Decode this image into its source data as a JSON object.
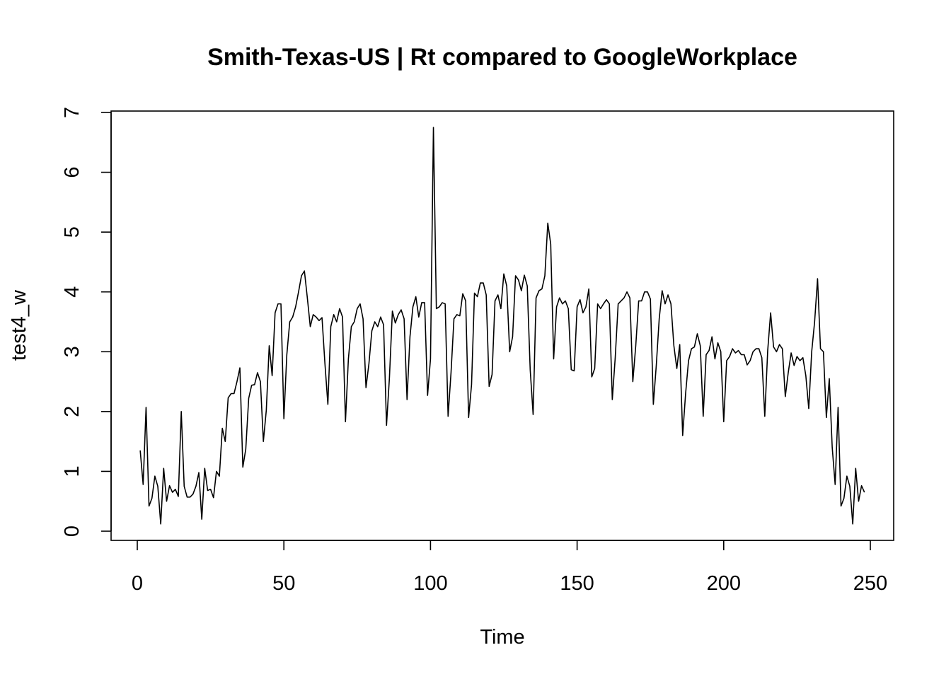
{
  "chart_data": {
    "type": "line",
    "title": "Smith-Texas-US | Rt compared to GoogleWorkplace",
    "xlabel": "Time",
    "ylabel": "test4_w",
    "xlim": [
      1,
      248
    ],
    "ylim": [
      0,
      7
    ],
    "xticks": [
      0,
      50,
      100,
      150,
      200,
      250
    ],
    "yticks": [
      0,
      1,
      2,
      3,
      4,
      5,
      6,
      7
    ],
    "grid": false,
    "series": [
      {
        "values": [
          1.35,
          0.78,
          2.07,
          0.42,
          0.55,
          0.92,
          0.75,
          0.12,
          1.05,
          0.5,
          0.76,
          0.65,
          0.7,
          0.58,
          2.0,
          0.75,
          0.57,
          0.57,
          0.62,
          0.75,
          0.98,
          0.2,
          1.05,
          0.68,
          0.7,
          0.56,
          1.0,
          0.92,
          1.72,
          1.5,
          2.23,
          2.3,
          2.3,
          2.5,
          2.73,
          1.07,
          1.37,
          2.22,
          2.44,
          2.45,
          2.65,
          2.5,
          1.5,
          2.02,
          3.1,
          2.6,
          3.65,
          3.8,
          3.8,
          1.88,
          2.95,
          3.5,
          3.58,
          3.75,
          4.0,
          4.27,
          4.35,
          3.9,
          3.42,
          3.62,
          3.58,
          3.52,
          3.57,
          2.8,
          2.12,
          3.42,
          3.62,
          3.5,
          3.72,
          3.58,
          1.83,
          2.88,
          3.42,
          3.5,
          3.72,
          3.8,
          3.55,
          2.4,
          2.8,
          3.35,
          3.5,
          3.42,
          3.58,
          3.45,
          1.77,
          2.57,
          3.68,
          3.48,
          3.62,
          3.7,
          3.55,
          2.2,
          3.25,
          3.75,
          3.92,
          3.58,
          3.82,
          3.82,
          2.27,
          2.88,
          6.75,
          3.72,
          3.75,
          3.82,
          3.8,
          1.92,
          2.65,
          3.55,
          3.62,
          3.6,
          3.97,
          3.85,
          1.9,
          2.45,
          3.98,
          3.92,
          4.15,
          4.15,
          3.95,
          2.42,
          2.62,
          3.85,
          3.95,
          3.72,
          4.3,
          4.1,
          3.0,
          3.25,
          4.27,
          4.2,
          4.02,
          4.28,
          4.1,
          2.7,
          1.95,
          3.9,
          4.02,
          4.05,
          4.27,
          5.15,
          4.8,
          2.88,
          3.75,
          3.9,
          3.8,
          3.85,
          3.72,
          2.7,
          2.68,
          3.75,
          3.87,
          3.65,
          3.75,
          4.05,
          2.58,
          2.72,
          3.8,
          3.72,
          3.8,
          3.87,
          3.8,
          2.2,
          2.9,
          3.8,
          3.85,
          3.9,
          4.0,
          3.9,
          2.5,
          3.1,
          3.85,
          3.85,
          4.0,
          4.0,
          3.88,
          2.12,
          2.77,
          3.55,
          4.02,
          3.8,
          3.95,
          3.8,
          3.1,
          2.72,
          3.12,
          1.6,
          2.3,
          2.85,
          3.05,
          3.08,
          3.3,
          3.1,
          1.92,
          2.95,
          3.02,
          3.25,
          2.88,
          3.15,
          3.0,
          1.83,
          2.85,
          2.92,
          3.05,
          2.98,
          3.02,
          2.95,
          2.95,
          2.78,
          2.85,
          3.0,
          3.05,
          3.05,
          2.9,
          1.92,
          3.02,
          3.65,
          3.08,
          3.0,
          3.12,
          3.05,
          2.25,
          2.65,
          2.98,
          2.77,
          2.92,
          2.85,
          2.9,
          2.6,
          2.05,
          3.0,
          3.5,
          4.22,
          3.05,
          3.0,
          1.9,
          2.55,
          1.4,
          0.78,
          2.07,
          0.42,
          0.55,
          0.92,
          0.75,
          0.12,
          1.05,
          0.5,
          0.76,
          0.65
        ]
      }
    ]
  }
}
